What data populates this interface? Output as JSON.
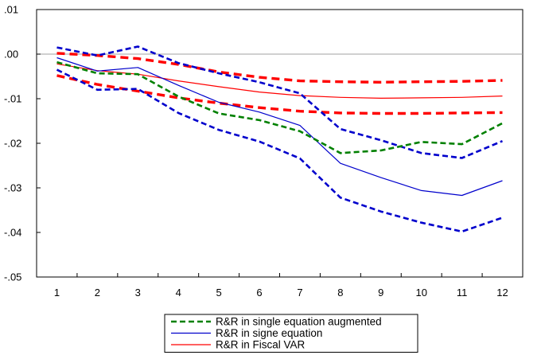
{
  "chart_data": {
    "type": "line",
    "title": "",
    "xlabel": "",
    "ylabel": "",
    "x": [
      1,
      2,
      3,
      4,
      5,
      6,
      7,
      8,
      9,
      10,
      11,
      12
    ],
    "x_tick_labels": [
      "1",
      "2",
      "3",
      "4",
      "5",
      "6",
      "7",
      "8",
      "9",
      "10",
      "11",
      "12"
    ],
    "ylim": [
      -0.05,
      0.01
    ],
    "y_ticks": [
      0.01,
      0.0,
      -0.01,
      -0.02,
      -0.03,
      -0.04,
      -0.05
    ],
    "y_tick_labels": [
      ".01",
      ".00",
      "-.01",
      "-.02",
      "-.03",
      "-.04",
      "-.05"
    ],
    "zero_line": true,
    "grid": false,
    "legend_position": "bottom-center",
    "series": [
      {
        "name": "R&R in single equation augmented",
        "color": "#008000",
        "style": "dashed",
        "in_legend": true,
        "values": [
          -0.0018,
          -0.0043,
          -0.0045,
          -0.0095,
          -0.0133,
          -0.0148,
          -0.0173,
          -0.0222,
          -0.0216,
          -0.0197,
          -0.0202,
          -0.0155
        ]
      },
      {
        "name": "R&R in signe equation",
        "color": "#0000cc",
        "style": "solid",
        "in_legend": true,
        "values": [
          -0.0008,
          -0.0038,
          -0.003,
          -0.007,
          -0.0108,
          -0.013,
          -0.016,
          -0.0245,
          -0.0277,
          -0.0306,
          -0.0317,
          -0.0284
        ]
      },
      {
        "name": "R&R in Fiscal VAR",
        "color": "#ff0000",
        "style": "solid",
        "in_legend": true,
        "values": [
          -0.0022,
          -0.0037,
          -0.0045,
          -0.006,
          -0.0073,
          -0.0085,
          -0.0093,
          -0.0097,
          -0.0099,
          -0.0098,
          -0.0097,
          -0.0094
        ]
      },
      {
        "name": "",
        "color": "#0000cc",
        "style": "dashed",
        "in_legend": false,
        "values": [
          0.0015,
          -0.0003,
          0.0017,
          -0.002,
          -0.0043,
          -0.0063,
          -0.0088,
          -0.0168,
          -0.0193,
          -0.0222,
          -0.0233,
          -0.0195
        ]
      },
      {
        "name": "",
        "color": "#0000cc",
        "style": "dashed",
        "in_legend": false,
        "values": [
          -0.0035,
          -0.008,
          -0.0078,
          -0.0132,
          -0.017,
          -0.0196,
          -0.0234,
          -0.0322,
          -0.0353,
          -0.0378,
          -0.0398,
          -0.0367
        ]
      },
      {
        "name": "",
        "color": "#ff0000",
        "style": "dashed-thick",
        "in_legend": false,
        "values": [
          0.0002,
          -0.0003,
          -0.001,
          -0.0023,
          -0.004,
          -0.0052,
          -0.006,
          -0.0062,
          -0.0063,
          -0.0062,
          -0.0061,
          -0.0059
        ]
      },
      {
        "name": "",
        "color": "#ff0000",
        "style": "dashed-thick",
        "in_legend": false,
        "values": [
          -0.0048,
          -0.0068,
          -0.0083,
          -0.0098,
          -0.011,
          -0.012,
          -0.0128,
          -0.0132,
          -0.0133,
          -0.0133,
          -0.0132,
          -0.0131
        ]
      }
    ]
  }
}
